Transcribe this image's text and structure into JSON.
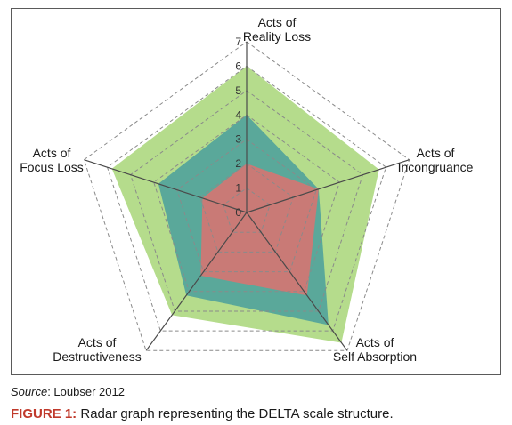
{
  "chart_data": {
    "type": "radar",
    "axes": [
      [
        "Acts of",
        "Reality Loss"
      ],
      [
        "Acts of",
        "Incongruance"
      ],
      [
        "Acts of",
        "Self Absorption"
      ],
      [
        "Acts of",
        "Destructiveness"
      ],
      [
        "Acts of",
        "Focus Loss"
      ]
    ],
    "scale": {
      "min": 0,
      "max": 7,
      "ticks": [
        0,
        1,
        2,
        3,
        4,
        5,
        6,
        7
      ]
    },
    "grid": "dashed pentagons",
    "series": [
      {
        "color": "#b5dc8c",
        "values": [
          6,
          5.7,
          6.6,
          5.2,
          5.8
        ]
      },
      {
        "color": "#5aa89a",
        "values": [
          4,
          3.1,
          5.7,
          4.2,
          3.8
        ]
      },
      {
        "color": "#c97a76",
        "values": [
          2,
          3.1,
          4.2,
          3.2,
          1.9
        ]
      }
    ]
  },
  "source": {
    "key": "Source",
    "text": ": Loubser 2012"
  },
  "caption": {
    "key": "FIGURE 1:",
    "text": " Radar graph representing the DELTA scale structure."
  }
}
